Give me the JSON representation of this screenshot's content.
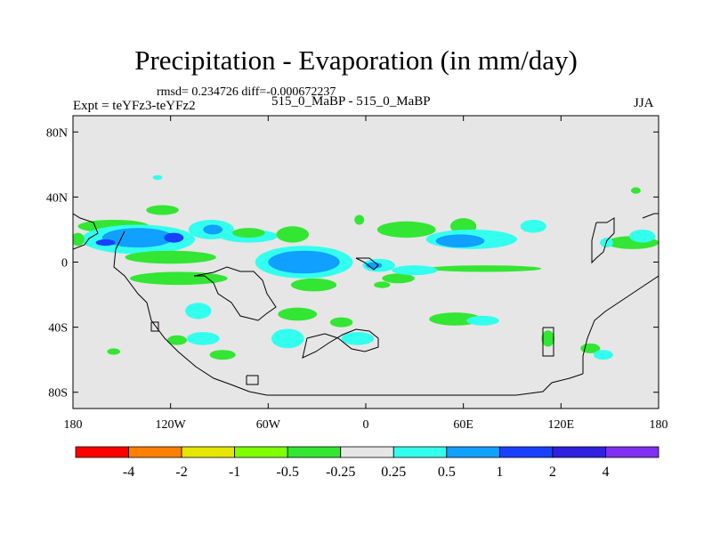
{
  "chart_data": {
    "type": "contour-map",
    "title": "Precipitation - Evaporation (in mm/day)",
    "stats_line": "rmsd= 0.234726 diff=-0.000672237",
    "experiment_label": "Expt = teYFz3-teYFz2",
    "case_label": "515_0_MaBP - 515_0_MaBP",
    "season": "JJA",
    "xlim": [
      -180,
      180
    ],
    "ylim": [
      -90,
      90
    ],
    "y_ticks": [
      {
        "value": 80,
        "label": "80N"
      },
      {
        "value": 40,
        "label": "40N"
      },
      {
        "value": 0,
        "label": "0"
      },
      {
        "value": -40,
        "label": "40S"
      },
      {
        "value": -80,
        "label": "80S"
      }
    ],
    "x_ticks": [
      {
        "value": -180,
        "label": "180"
      },
      {
        "value": -120,
        "label": "120W"
      },
      {
        "value": -60,
        "label": "60W"
      },
      {
        "value": 0,
        "label": "0"
      },
      {
        "value": 60,
        "label": "60E"
      },
      {
        "value": 120,
        "label": "120E"
      },
      {
        "value": 180,
        "label": "180"
      }
    ],
    "colorbar": {
      "colors": [
        "#ff0000",
        "#ff8000",
        "#e6e600",
        "#80ff00",
        "#33e633",
        "#e6e6e6",
        "#33ffee",
        "#10a0ff",
        "#1a40ff",
        "#3020e0",
        "#8030f0"
      ],
      "labels": [
        "-4",
        "-2",
        "-1",
        "-0.5",
        "-0.25",
        "0.25",
        "0.5",
        "1",
        "2",
        "4"
      ]
    },
    "background_color": "#e6e6e6",
    "regions": [
      {
        "cls": 4,
        "cx": -155,
        "cy": 22,
        "rx": 22,
        "ry": 4
      },
      {
        "cls": 4,
        "cx": -125,
        "cy": 32,
        "rx": 10,
        "ry": 3
      },
      {
        "cls": 6,
        "cx": -140,
        "cy": 14,
        "rx": 35,
        "ry": 9
      },
      {
        "cls": 7,
        "cx": -140,
        "cy": 15,
        "rx": 22,
        "ry": 6
      },
      {
        "cls": 8,
        "cx": -160,
        "cy": 12,
        "rx": 6,
        "ry": 2
      },
      {
        "cls": 8,
        "cx": -118,
        "cy": 15,
        "rx": 6,
        "ry": 3
      },
      {
        "cls": 6,
        "cx": -95,
        "cy": 20,
        "rx": 14,
        "ry": 6
      },
      {
        "cls": 7,
        "cx": -94,
        "cy": 20,
        "rx": 6,
        "ry": 3
      },
      {
        "cls": 4,
        "cx": -120,
        "cy": 3,
        "rx": 28,
        "ry": 4
      },
      {
        "cls": 6,
        "cx": -72,
        "cy": 16,
        "rx": 18,
        "ry": 4
      },
      {
        "cls": 4,
        "cx": -72,
        "cy": 18,
        "rx": 10,
        "ry": 3
      },
      {
        "cls": 4,
        "cx": -45,
        "cy": 17,
        "rx": 10,
        "ry": 5
      },
      {
        "cls": 6,
        "cx": -38,
        "cy": 0,
        "rx": 30,
        "ry": 10
      },
      {
        "cls": 7,
        "cx": -38,
        "cy": 0,
        "rx": 22,
        "ry": 7
      },
      {
        "cls": 4,
        "cx": -115,
        "cy": -10,
        "rx": 30,
        "ry": 4
      },
      {
        "cls": 4,
        "cx": -32,
        "cy": -14,
        "rx": 14,
        "ry": 4
      },
      {
        "cls": 6,
        "cx": 8,
        "cy": -2,
        "rx": 10,
        "ry": 4
      },
      {
        "cls": 7,
        "cx": 5,
        "cy": -2,
        "rx": 5,
        "ry": 2
      },
      {
        "cls": 4,
        "cx": 20,
        "cy": -10,
        "rx": 10,
        "ry": 3
      },
      {
        "cls": 4,
        "cx": 25,
        "cy": 20,
        "rx": 18,
        "ry": 5
      },
      {
        "cls": 4,
        "cx": 60,
        "cy": 22,
        "rx": 8,
        "ry": 5
      },
      {
        "cls": 6,
        "cx": 65,
        "cy": 14,
        "rx": 28,
        "ry": 6
      },
      {
        "cls": 7,
        "cx": 58,
        "cy": 13,
        "rx": 15,
        "ry": 4
      },
      {
        "cls": 6,
        "cx": 103,
        "cy": 22,
        "rx": 8,
        "ry": 4
      },
      {
        "cls": 4,
        "cx": 73,
        "cy": -4,
        "rx": 35,
        "ry": 2
      },
      {
        "cls": 6,
        "cx": -128,
        "cy": 52,
        "rx": 3,
        "ry": 1.5
      },
      {
        "cls": 4,
        "cx": -4,
        "cy": 26,
        "rx": 3,
        "ry": 3
      },
      {
        "cls": 6,
        "cx": -103,
        "cy": -30,
        "rx": 8,
        "ry": 5
      },
      {
        "cls": 4,
        "cx": -116,
        "cy": -48,
        "rx": 6,
        "ry": 3
      },
      {
        "cls": 4,
        "cx": -88,
        "cy": -57,
        "rx": 8,
        "ry": 3
      },
      {
        "cls": 6,
        "cx": -100,
        "cy": -47,
        "rx": 10,
        "ry": 4
      },
      {
        "cls": 4,
        "cx": -42,
        "cy": -32,
        "rx": 12,
        "ry": 4
      },
      {
        "cls": 6,
        "cx": -48,
        "cy": -47,
        "rx": 10,
        "ry": 6
      },
      {
        "cls": 6,
        "cx": -5,
        "cy": -47,
        "rx": 10,
        "ry": 4
      },
      {
        "cls": 4,
        "cx": -15,
        "cy": -37,
        "rx": 7,
        "ry": 3
      },
      {
        "cls": 4,
        "cx": 55,
        "cy": -35,
        "rx": 16,
        "ry": 4
      },
      {
        "cls": 6,
        "cx": 72,
        "cy": -36,
        "rx": 10,
        "ry": 3
      },
      {
        "cls": 4,
        "cx": 138,
        "cy": -53,
        "rx": 6,
        "ry": 3
      },
      {
        "cls": 6,
        "cx": 146,
        "cy": -57,
        "rx": 6,
        "ry": 3
      },
      {
        "cls": 4,
        "cx": 112,
        "cy": -47,
        "rx": 4,
        "ry": 5
      },
      {
        "cls": 4,
        "cx": 164,
        "cy": 12,
        "rx": 16,
        "ry": 4
      },
      {
        "cls": 6,
        "cx": 170,
        "cy": 16,
        "rx": 8,
        "ry": 4
      },
      {
        "cls": 6,
        "cx": 148,
        "cy": 12,
        "rx": 4,
        "ry": 3
      },
      {
        "cls": 4,
        "cx": -177,
        "cy": 14,
        "rx": 4,
        "ry": 4
      },
      {
        "cls": 4,
        "cx": 166,
        "cy": 44,
        "rx": 3,
        "ry": 2
      },
      {
        "cls": 6,
        "cx": 30,
        "cy": -5,
        "rx": 14,
        "ry": 3
      },
      {
        "cls": 4,
        "cx": 10,
        "cy": -14,
        "rx": 5,
        "ry": 2
      },
      {
        "cls": 4,
        "cx": -155,
        "cy": -55,
        "rx": 4,
        "ry": 2
      }
    ]
  }
}
